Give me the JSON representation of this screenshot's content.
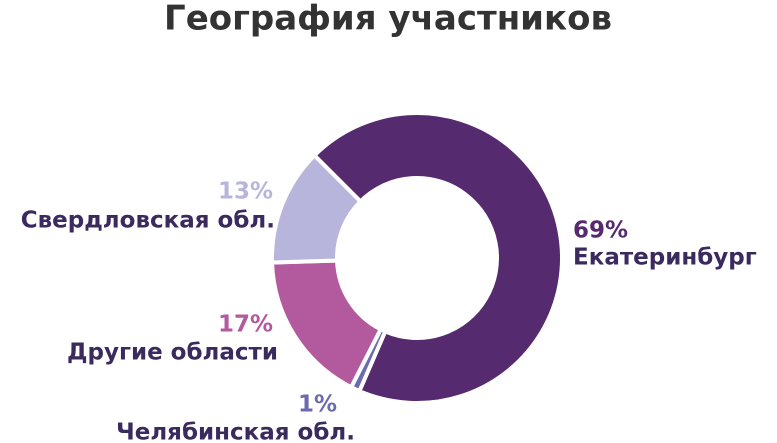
{
  "chart_data": {
    "type": "pie",
    "title": "География участников",
    "categories": [
      "Екатеринбург",
      "Челябинская обл.",
      "Другие области",
      "Свердловская обл."
    ],
    "values": [
      69,
      1,
      17,
      13
    ],
    "value_labels": [
      "69%",
      "1%",
      "17%",
      "13%"
    ],
    "colors": [
      "#552a6e",
      "#6c6bb0",
      "#b35a9e",
      "#b8b5dc"
    ]
  }
}
